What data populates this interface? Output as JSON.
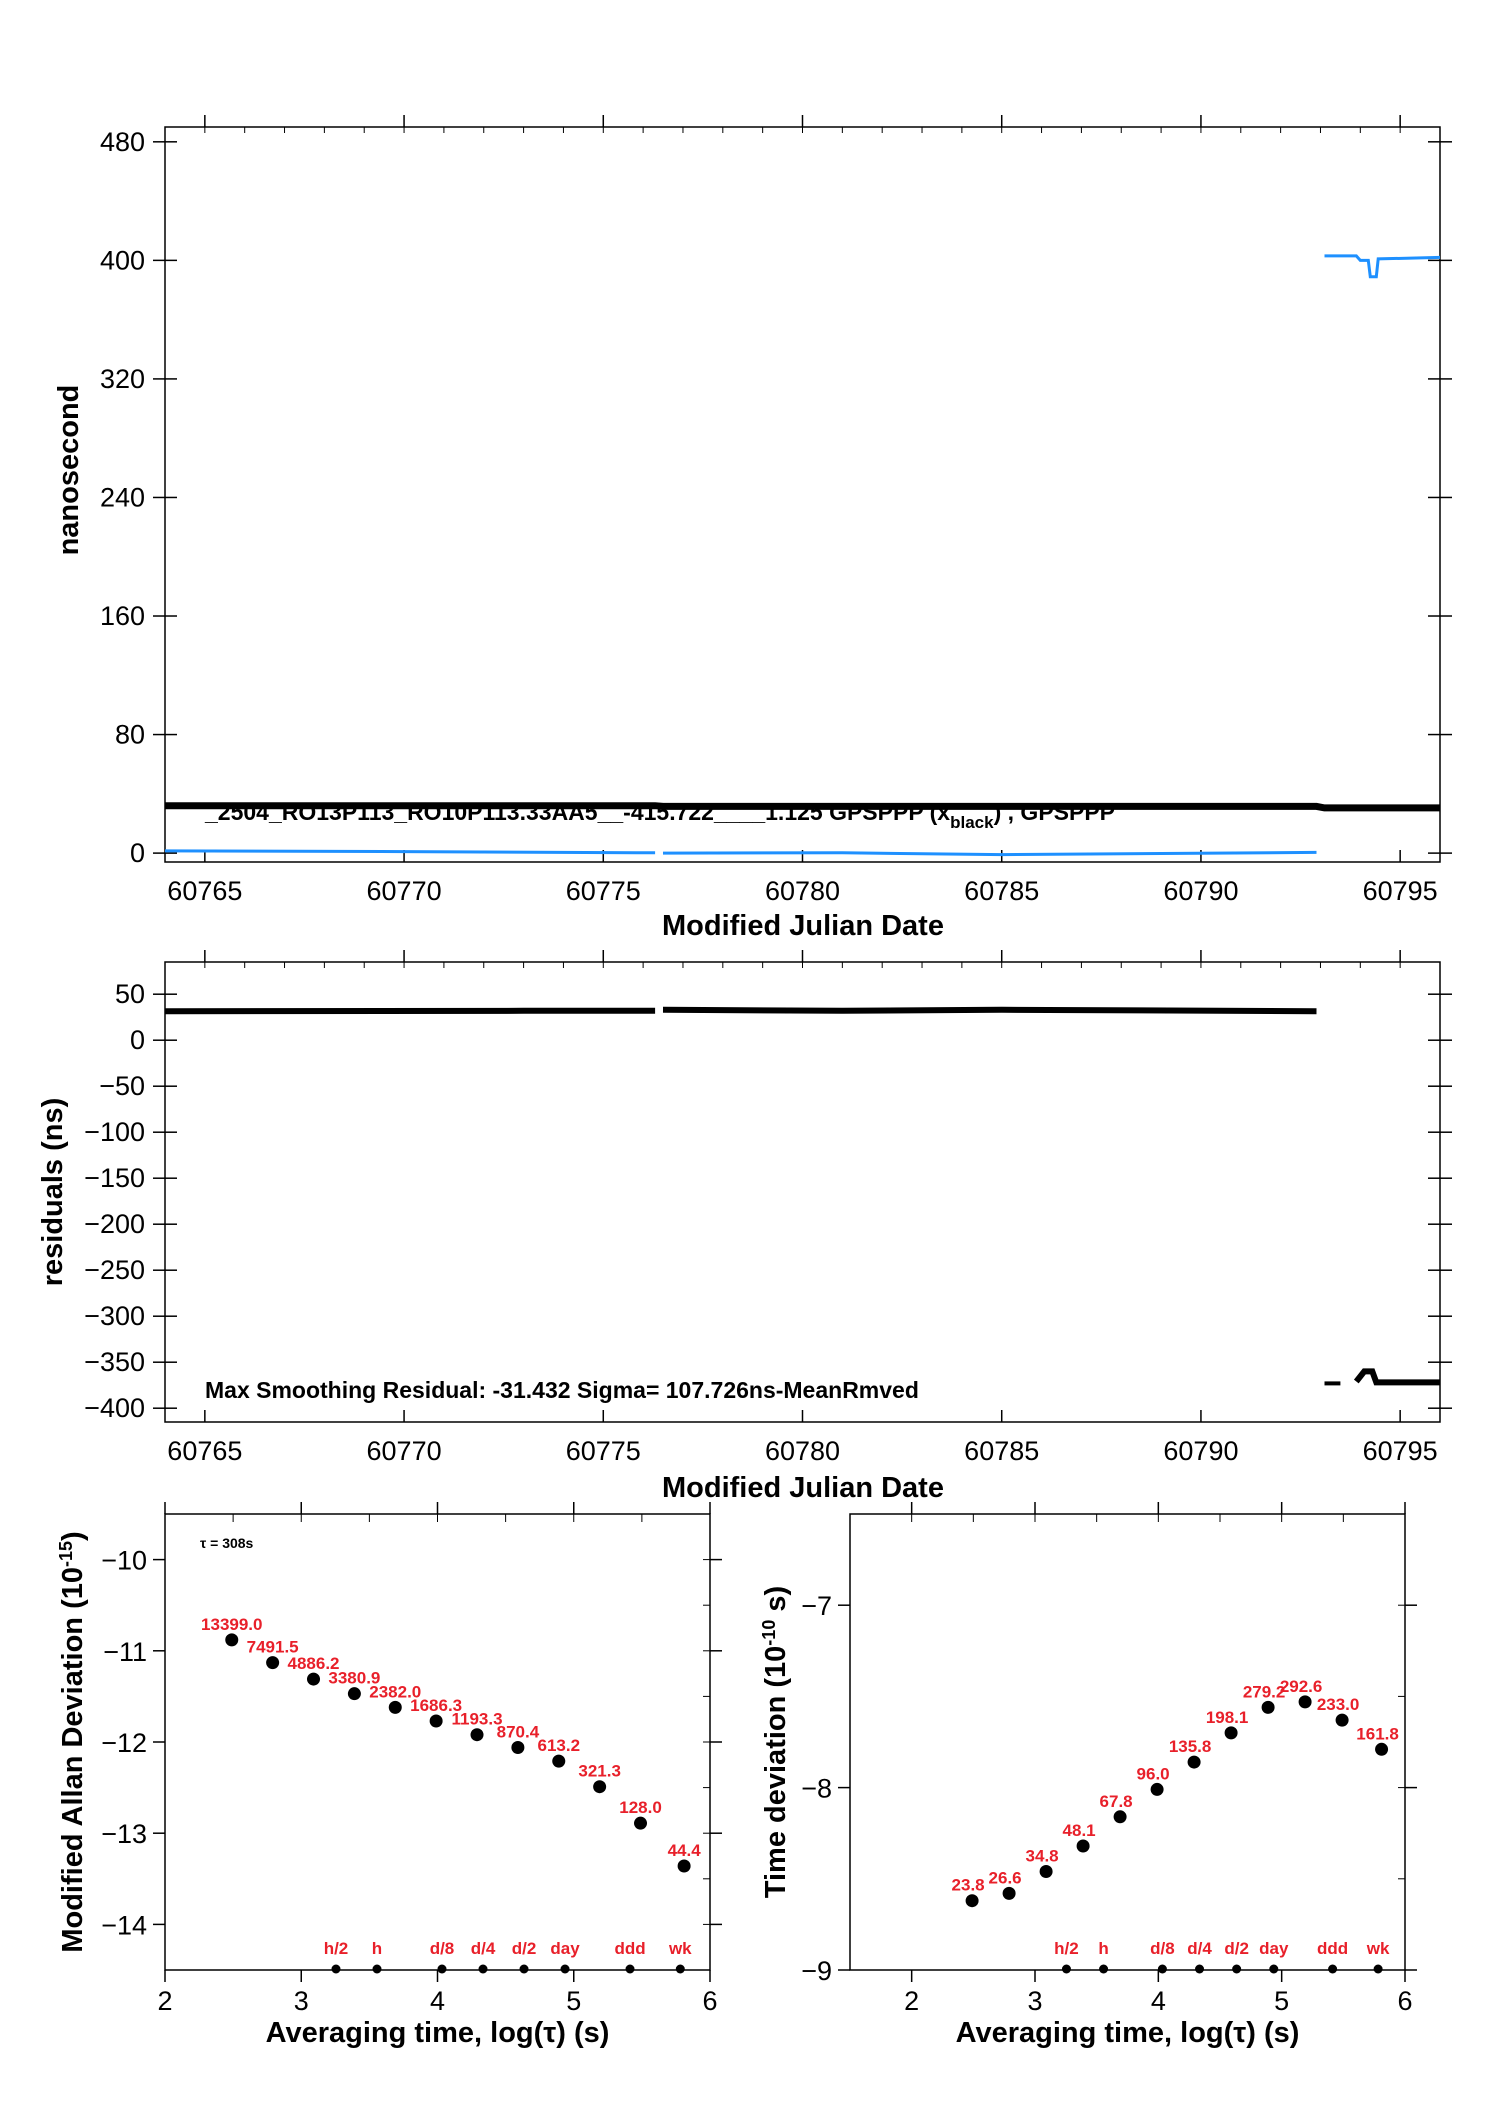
{
  "colors": {
    "black": "#000000",
    "blue": "#1e90ff",
    "red": "#e8202a"
  },
  "chart_data": [
    {
      "type": "line",
      "id": "phase",
      "xlabel": "Modified Julian Date",
      "ylabel": "nanosecond",
      "xlim": [
        60764,
        60796
      ],
      "ylim": [
        -6,
        490
      ],
      "xticks": [
        60765,
        60770,
        60775,
        60780,
        60785,
        60790,
        60795
      ],
      "yticks": [
        0,
        80,
        160,
        240,
        320,
        400,
        480
      ],
      "legend_text_main": "_2504_RO13P113_RO10P113.33AA5__-415.722____1.125     GPSPPP (x",
      "legend_text_sub": "black",
      "legend_text_tail": ")  ,  GPSPPP",
      "series": [
        {
          "color": "#000000",
          "points": [
            [
              60764,
              32
            ],
            [
              60776.3,
              32
            ],
            [
              60776.5,
              31.5
            ],
            [
              60785,
              31.5
            ],
            [
              60792.9,
              31.5
            ],
            [
              60793.1,
              30.5
            ],
            [
              60796,
              30.5
            ]
          ]
        },
        {
          "color": "#1e90ff",
          "points": [
            [
              60764,
              1.5
            ],
            [
              60770,
              1
            ],
            [
              60776.3,
              0.2
            ]
          ]
        },
        {
          "color": "#1e90ff",
          "points": [
            [
              60776.5,
              0
            ],
            [
              60781,
              0.2
            ],
            [
              60785,
              -1
            ],
            [
              60792.9,
              0.5
            ]
          ]
        },
        {
          "color": "#1e90ff",
          "points": [
            [
              60793.1,
              403
            ],
            [
              60793.9,
              403
            ],
            [
              60794.0,
              400
            ],
            [
              60794.2,
              400
            ],
            [
              60794.25,
              389
            ],
            [
              60794.4,
              389
            ],
            [
              60794.45,
              401
            ],
            [
              60796,
              402
            ]
          ]
        }
      ]
    },
    {
      "type": "line",
      "id": "residuals",
      "xlabel": "Modified Julian Date",
      "ylabel": "residuals (ns)",
      "xlim": [
        60764,
        60796
      ],
      "ylim": [
        -415,
        85
      ],
      "xticks": [
        60765,
        60770,
        60775,
        60780,
        60785,
        60790,
        60795
      ],
      "yticks": [
        50,
        0,
        -50,
        -100,
        -150,
        -200,
        -250,
        -300,
        -350,
        -400
      ],
      "annotation": "Max Smoothing Residual: -31.432  Sigma= 107.726ns-MeanRmved",
      "series": [
        {
          "color": "#000000",
          "points": [
            [
              60764,
              31.5
            ],
            [
              60773,
              32
            ],
            [
              60776.3,
              32
            ]
          ]
        },
        {
          "color": "#000000",
          "points": [
            [
              60776.5,
              33
            ],
            [
              60781,
              32
            ],
            [
              60785,
              33
            ],
            [
              60792.9,
              31.5
            ]
          ]
        },
        {
          "color": "#000000",
          "points": [
            [
              60793.1,
              -373
            ],
            [
              60793.5,
              -373
            ]
          ]
        },
        {
          "color": "#000000",
          "points": [
            [
              60793.9,
              -371
            ],
            [
              60794.1,
              -360
            ],
            [
              60794.3,
              -360
            ],
            [
              60794.4,
              -372
            ],
            [
              60796,
              -372
            ]
          ]
        }
      ]
    },
    {
      "type": "scatter",
      "id": "mdev",
      "xlabel": "Averaging time, log(τ) (s)",
      "ylabel": "Modified Allan Deviation (10",
      "ylabel_exp": "-15",
      "ylabel_tail": ")",
      "xlim": [
        2,
        6
      ],
      "ylim": [
        -14.5,
        -9.5
      ],
      "xticks": [
        2,
        3,
        4,
        5,
        6
      ],
      "yticks": [
        -10,
        -11,
        -12,
        -13,
        -14
      ],
      "tau_note": "τ = 308s",
      "x": [
        2.49,
        2.79,
        3.09,
        3.39,
        3.69,
        3.99,
        4.29,
        4.59,
        4.89,
        5.19,
        5.49,
        5.81
      ],
      "y": [
        -10.88,
        -11.13,
        -11.31,
        -11.47,
        -11.62,
        -11.77,
        -11.92,
        -12.06,
        -12.21,
        -12.49,
        -12.89,
        -13.36
      ],
      "labels": [
        "13399.0",
        "7491.5",
        "4886.2",
        "3380.9",
        "2382.0",
        "1686.3",
        "1193.3",
        "870.4",
        "613.2",
        "321.3",
        "128.0",
        "44.4"
      ],
      "markers": [
        {
          "label": "h/2",
          "x": 3.255
        },
        {
          "label": "h",
          "x": 3.556
        },
        {
          "label": "d/8",
          "x": 4.033
        },
        {
          "label": "d/4",
          "x": 4.334
        },
        {
          "label": "d/2",
          "x": 4.635
        },
        {
          "label": "day",
          "x": 4.936
        },
        {
          "label": "ddd",
          "x": 5.413
        },
        {
          "label": "wk",
          "x": 5.782
        }
      ]
    },
    {
      "type": "scatter",
      "id": "tdev",
      "xlabel": "Averaging time, log(τ) (s)",
      "ylabel": "Time deviation (10",
      "ylabel_exp": "-10",
      "ylabel_tail": " s)",
      "xlim": [
        1.5,
        6
      ],
      "ylim": [
        -9,
        -6.5
      ],
      "xticks": [
        2,
        3,
        4,
        5,
        6
      ],
      "yticks": [
        -7,
        -8,
        -9
      ],
      "x": [
        2.49,
        2.79,
        3.09,
        3.39,
        3.69,
        3.99,
        4.29,
        4.59,
        4.89,
        5.19,
        5.49,
        5.81
      ],
      "y": [
        -8.62,
        -8.58,
        -8.46,
        -8.32,
        -8.16,
        -8.01,
        -7.86,
        -7.7,
        -7.56,
        -7.53,
        -7.63,
        -7.79
      ],
      "labels": [
        "23.8",
        "26.6",
        "34.8",
        "48.1",
        "67.8",
        "96.0",
        "135.8",
        "198.1",
        "279.2",
        "292.6",
        "233.0",
        "161.8"
      ],
      "markers": [
        {
          "label": "h/2",
          "x": 3.255
        },
        {
          "label": "h",
          "x": 3.556
        },
        {
          "label": "d/8",
          "x": 4.033
        },
        {
          "label": "d/4",
          "x": 4.334
        },
        {
          "label": "d/2",
          "x": 4.635
        },
        {
          "label": "day",
          "x": 4.936
        },
        {
          "label": "ddd",
          "x": 5.413
        },
        {
          "label": "wk",
          "x": 5.782
        }
      ]
    }
  ]
}
